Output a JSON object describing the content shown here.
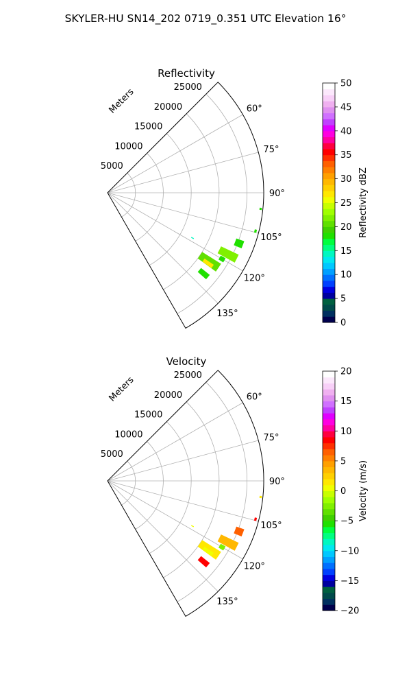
{
  "suptitle": "SKYLER-HU  SN14_202  0719_0.351 UTC Elevation 16°",
  "chart_data": [
    {
      "type": "polar-sector",
      "title": "Reflectivity",
      "range_label": "Meters",
      "theta_range_deg": [
        45,
        150
      ],
      "r_max": 28000,
      "r_ticks": [
        5000,
        10000,
        15000,
        20000,
        25000
      ],
      "r_tick_labels": [
        "5000",
        "10000",
        "15000",
        "20000",
        "25000"
      ],
      "theta_ticks": [
        60,
        75,
        90,
        105,
        120,
        135
      ],
      "theta_tick_labels": [
        "60°",
        "75°",
        "90°",
        "105°",
        "120°",
        "135°"
      ],
      "grid": true,
      "colorbar": {
        "label": "Reflectivity dBZ",
        "min": 0,
        "max": 50,
        "ticks": [
          0,
          5,
          10,
          15,
          20,
          25,
          30,
          35,
          40,
          45,
          50
        ],
        "tick_labels": [
          "0",
          "5",
          "10",
          "15",
          "20",
          "25",
          "30",
          "35",
          "40",
          "45",
          "50"
        ],
        "colors": [
          "#00004d",
          "#003060",
          "#004a4a",
          "#006040",
          "#0000a0",
          "#0000e0",
          "#0040ff",
          "#0070ff",
          "#00a0ff",
          "#00c8ff",
          "#00e8f0",
          "#00f8c0",
          "#00ff80",
          "#00ff40",
          "#20e000",
          "#40d000",
          "#60e000",
          "#80f000",
          "#a0ff00",
          "#c8ff00",
          "#f0ff00",
          "#ffe800",
          "#ffd000",
          "#ffb800",
          "#ffa000",
          "#ff8000",
          "#ff6000",
          "#ff3000",
          "#ff0000",
          "#ff0040",
          "#ff00a0",
          "#ff00e0",
          "#e000ff",
          "#c040ff",
          "#d070ff",
          "#e090f0",
          "#f0b0f0",
          "#f8d0f8",
          "#fce8fc",
          "#ffffff"
        ]
      },
      "echo_regions": [
        {
          "theta_deg": 104.5,
          "r_start": 27200,
          "r_end": 27600,
          "dtheta": 1.2,
          "value": 18
        },
        {
          "theta_deg": 96,
          "r_start": 27400,
          "r_end": 27800,
          "dtheta": 0.8,
          "value": 18
        },
        {
          "theta_deg": 118,
          "r_start": 17000,
          "r_end": 17500,
          "dtheta": 0.6,
          "value": 14
        },
        {
          "theta_deg": 111,
          "r_start": 24500,
          "r_end": 26000,
          "dtheta": 3,
          "value": 18
        },
        {
          "theta_deg": 117,
          "r_start": 22500,
          "r_end": 26000,
          "dtheta": 3.5,
          "value": 22
        },
        {
          "theta_deg": 124,
          "r_start": 20000,
          "r_end": 24000,
          "dtheta": 4,
          "value": 20
        },
        {
          "theta_deg": 125,
          "r_start": 21000,
          "r_end": 23000,
          "dtheta": 1.8,
          "value": 27
        },
        {
          "theta_deg": 130,
          "r_start": 21500,
          "r_end": 23500,
          "dtheta": 2.5,
          "value": 18
        },
        {
          "theta_deg": 120,
          "r_start": 23200,
          "r_end": 24200,
          "dtheta": 2,
          "value": 18
        }
      ]
    },
    {
      "type": "polar-sector",
      "title": "Velocity",
      "range_label": "Meters",
      "theta_range_deg": [
        45,
        150
      ],
      "r_max": 28000,
      "r_ticks": [
        5000,
        10000,
        15000,
        20000,
        25000
      ],
      "r_tick_labels": [
        "5000",
        "10000",
        "15000",
        "20000",
        "25000"
      ],
      "theta_ticks": [
        60,
        75,
        90,
        105,
        120,
        135
      ],
      "theta_tick_labels": [
        "60°",
        "75°",
        "90°",
        "105°",
        "120°",
        "135°"
      ],
      "grid": true,
      "colorbar": {
        "label": "Velocity (m/s)",
        "min": -20,
        "max": 20,
        "ticks": [
          -20,
          -15,
          -10,
          -5,
          0,
          5,
          10,
          15,
          20
        ],
        "tick_labels": [
          "−20",
          "−15",
          "−10",
          "−5",
          "0",
          "5",
          "10",
          "15",
          "20"
        ],
        "colors": [
          "#00004d",
          "#003060",
          "#004a4a",
          "#006040",
          "#0000a0",
          "#0000e0",
          "#0040ff",
          "#0070ff",
          "#00a0ff",
          "#00c8ff",
          "#00e8f0",
          "#00f8c0",
          "#00ff80",
          "#00ff40",
          "#20e000",
          "#40d000",
          "#60e000",
          "#80f000",
          "#a0ff00",
          "#c8ff00",
          "#f0ff00",
          "#ffe800",
          "#ffd000",
          "#ffb800",
          "#ffa000",
          "#ff8000",
          "#ff6000",
          "#ff3000",
          "#ff0000",
          "#ff0040",
          "#ff00a0",
          "#ff00e0",
          "#e000ff",
          "#c040ff",
          "#d070ff",
          "#e090f0",
          "#f0b0f0",
          "#f8d0f8",
          "#fce8fc",
          "#ffffff"
        ]
      },
      "echo_regions": [
        {
          "theta_deg": 104.5,
          "r_start": 27200,
          "r_end": 27600,
          "dtheta": 1.2,
          "value": 8
        },
        {
          "theta_deg": 96,
          "r_start": 27400,
          "r_end": 27800,
          "dtheta": 0.8,
          "value": 1
        },
        {
          "theta_deg": 118,
          "r_start": 17000,
          "r_end": 17500,
          "dtheta": 0.6,
          "value": 0
        },
        {
          "theta_deg": 111,
          "r_start": 24500,
          "r_end": 26000,
          "dtheta": 3,
          "value": 6
        },
        {
          "theta_deg": 117,
          "r_start": 22500,
          "r_end": 26000,
          "dtheta": 3.5,
          "value": 3
        },
        {
          "theta_deg": 124,
          "r_start": 20000,
          "r_end": 24000,
          "dtheta": 4,
          "value": 1
        },
        {
          "theta_deg": 125,
          "r_start": 21000,
          "r_end": 23000,
          "dtheta": 1.8,
          "value": 0
        },
        {
          "theta_deg": 130,
          "r_start": 21500,
          "r_end": 23500,
          "dtheta": 2.5,
          "value": 8
        },
        {
          "theta_deg": 120,
          "r_start": 23200,
          "r_end": 24200,
          "dtheta": 2,
          "value": -3
        }
      ]
    }
  ]
}
